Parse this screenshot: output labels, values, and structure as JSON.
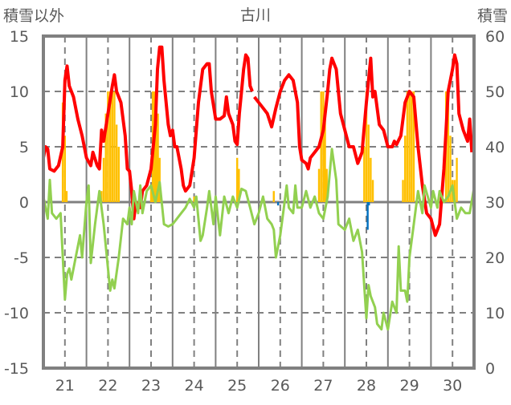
{
  "chart_data": {
    "type": "line",
    "title": "古川",
    "ylabel": "積雪以外",
    "y2label": "積雪",
    "xlim": [
      20.5,
      30.5
    ],
    "ylim": [
      -15,
      15
    ],
    "y2lim": [
      0,
      60
    ],
    "grid": true,
    "x_ticks": [
      "21",
      "22",
      "23",
      "24",
      "25",
      "26",
      "27",
      "28",
      "29",
      "30"
    ],
    "y_ticks": [
      "15",
      "10",
      "5",
      "0",
      "-5",
      "-10",
      "-15"
    ],
    "y2_ticks": [
      "60",
      "50",
      "40",
      "30",
      "20",
      "10",
      "0"
    ],
    "colors": {
      "red": "#ff0000",
      "green": "#92d050",
      "orange": "#ffc000",
      "blue": "#0070c0",
      "purple": "#7030a0",
      "frame": "#808080"
    },
    "series": [
      {
        "name": "red_line",
        "color": "#ff0000",
        "points": [
          [
            20.5,
            4.0
          ],
          [
            20.55,
            5
          ],
          [
            20.6,
            4.8
          ],
          [
            20.65,
            3
          ],
          [
            20.75,
            2.8
          ],
          [
            20.85,
            3.3
          ],
          [
            20.95,
            5
          ],
          [
            21.0,
            11
          ],
          [
            21.05,
            12.3
          ],
          [
            21.1,
            10.5
          ],
          [
            21.2,
            9.5
          ],
          [
            21.3,
            7.5
          ],
          [
            21.4,
            6
          ],
          [
            21.45,
            5
          ],
          [
            21.5,
            4
          ],
          [
            21.6,
            3.3
          ],
          [
            21.65,
            4.5
          ],
          [
            21.75,
            3.3
          ],
          [
            21.8,
            3
          ],
          [
            21.85,
            6.5
          ],
          [
            21.9,
            5.5
          ],
          [
            22.0,
            8
          ],
          [
            22.1,
            10.5
          ],
          [
            22.15,
            11.5
          ],
          [
            22.2,
            10
          ],
          [
            22.3,
            9
          ],
          [
            22.4,
            6
          ],
          [
            22.45,
            3
          ],
          [
            22.5,
            2.8
          ],
          [
            22.55,
            1
          ],
          [
            22.6,
            -1.5
          ],
          [
            22.65,
            0
          ],
          [
            22.75,
            -0.5
          ],
          [
            22.8,
            1
          ],
          [
            22.9,
            1.5
          ],
          [
            23.0,
            3
          ],
          [
            23.1,
            7
          ],
          [
            23.15,
            12
          ],
          [
            23.2,
            14
          ],
          [
            23.25,
            14
          ],
          [
            23.3,
            11
          ],
          [
            23.4,
            7
          ],
          [
            23.45,
            6
          ],
          [
            23.5,
            6.5
          ],
          [
            23.55,
            5
          ],
          [
            23.6,
            5
          ],
          [
            23.7,
            3
          ],
          [
            23.75,
            1.5
          ],
          [
            23.8,
            1
          ],
          [
            23.9,
            1.5
          ],
          [
            24.0,
            4
          ],
          [
            24.1,
            9
          ],
          [
            24.2,
            12
          ],
          [
            24.3,
            12.5
          ],
          [
            24.35,
            12.5
          ],
          [
            24.4,
            10
          ],
          [
            24.5,
            7.5
          ],
          [
            24.6,
            7.5
          ],
          [
            24.7,
            7.8
          ],
          [
            24.75,
            9.5
          ],
          [
            24.8,
            8
          ],
          [
            24.9,
            7
          ],
          [
            24.95,
            5.5
          ],
          [
            25.0,
            5.2
          ],
          [
            25.05,
            8
          ],
          [
            25.1,
            10
          ],
          [
            25.15,
            12
          ],
          [
            25.2,
            13.3
          ],
          [
            25.25,
            13
          ],
          [
            25.3,
            10.5
          ],
          [
            25.35,
            10
          ],
          null,
          [
            25.4,
            9.5
          ],
          [
            25.5,
            9
          ],
          [
            25.6,
            8.5
          ],
          [
            25.7,
            8
          ],
          [
            25.8,
            6.8
          ],
          [
            25.9,
            8.5
          ],
          [
            26.0,
            10
          ],
          [
            26.1,
            11
          ],
          [
            26.2,
            11.5
          ],
          [
            26.3,
            11
          ],
          [
            26.4,
            9
          ],
          [
            26.45,
            5
          ],
          [
            26.5,
            3.8
          ],
          [
            26.6,
            3.5
          ],
          [
            26.65,
            3
          ],
          [
            26.7,
            4
          ],
          [
            26.8,
            4.5
          ],
          [
            26.9,
            5
          ],
          [
            27.0,
            6.5
          ],
          [
            27.1,
            10
          ],
          [
            27.15,
            12
          ],
          [
            27.2,
            13
          ],
          [
            27.3,
            12
          ],
          [
            27.4,
            8
          ],
          [
            27.5,
            6.5
          ],
          [
            27.6,
            5
          ],
          [
            27.7,
            5
          ],
          [
            27.8,
            3.5
          ],
          [
            27.9,
            4.5
          ],
          [
            28.0,
            9
          ],
          [
            28.05,
            11
          ],
          [
            28.1,
            13
          ],
          [
            28.15,
            9.5
          ],
          [
            28.2,
            10
          ],
          [
            28.3,
            7
          ],
          [
            28.4,
            6.5
          ],
          [
            28.5,
            5
          ],
          [
            28.6,
            5
          ],
          [
            28.65,
            5.5
          ],
          [
            28.7,
            5.2
          ],
          [
            28.8,
            6
          ],
          [
            28.9,
            9
          ],
          [
            29.0,
            10
          ],
          [
            29.1,
            9.5
          ],
          [
            29.2,
            5
          ],
          [
            29.3,
            1.5
          ],
          [
            29.4,
            -1
          ],
          [
            29.5,
            -1.5
          ],
          [
            29.6,
            -3
          ],
          [
            29.7,
            -2
          ],
          [
            29.8,
            3
          ],
          [
            29.9,
            10
          ],
          [
            30.0,
            12
          ],
          [
            30.05,
            13.3
          ],
          [
            30.1,
            12.5
          ],
          [
            30.15,
            8
          ],
          [
            30.25,
            6.5
          ],
          [
            30.35,
            5.5
          ],
          [
            30.4,
            7.5
          ],
          [
            30.45,
            4.5
          ]
        ]
      },
      {
        "name": "green_line",
        "color": "#92d050",
        "points": [
          [
            20.5,
            0.5
          ],
          [
            20.6,
            -1.5
          ],
          [
            20.65,
            2
          ],
          [
            20.7,
            -1
          ],
          [
            20.8,
            -1.5
          ],
          [
            20.9,
            -1
          ],
          [
            21.0,
            -8.8
          ],
          [
            21.05,
            -6.5
          ],
          [
            21.1,
            -6
          ],
          [
            21.15,
            -7
          ],
          [
            21.3,
            -4
          ],
          [
            21.35,
            -3
          ],
          [
            21.4,
            -5
          ],
          [
            21.5,
            0
          ],
          [
            21.55,
            1.5
          ],
          [
            21.6,
            -5.5
          ],
          [
            21.7,
            -2
          ],
          [
            21.8,
            1
          ],
          [
            21.9,
            -2
          ],
          [
            22.0,
            -6
          ],
          [
            22.05,
            -8
          ],
          [
            22.1,
            -7
          ],
          [
            22.15,
            -7.8
          ],
          [
            22.25,
            -5
          ],
          [
            22.35,
            -1.5
          ],
          [
            22.45,
            -2
          ],
          [
            22.5,
            -0.5
          ],
          [
            22.55,
            -2
          ],
          [
            22.6,
            1
          ],
          [
            22.7,
            -1
          ],
          [
            22.75,
            1.5
          ],
          [
            22.8,
            -1
          ],
          [
            22.9,
            1
          ],
          [
            23.0,
            1.5
          ],
          [
            23.1,
            0
          ],
          [
            23.2,
            1.8
          ],
          [
            23.3,
            -2
          ],
          [
            23.4,
            -2.2
          ],
          [
            23.5,
            -2
          ],
          [
            23.6,
            -1.5
          ],
          [
            23.7,
            -1
          ],
          [
            23.8,
            -0.5
          ],
          [
            23.9,
            0.3
          ],
          [
            24.0,
            -0.5
          ],
          [
            24.05,
            0.5
          ],
          [
            24.15,
            -3.5
          ],
          [
            24.2,
            -3
          ],
          [
            24.3,
            -0.5
          ],
          [
            24.35,
            1
          ],
          [
            24.45,
            -2
          ],
          [
            24.5,
            0.5
          ],
          [
            24.6,
            -3
          ],
          [
            24.7,
            0.5
          ],
          [
            24.8,
            -1
          ],
          [
            24.9,
            0.5
          ],
          [
            25.0,
            -0.5
          ],
          [
            25.1,
            1.2
          ],
          [
            25.2,
            1
          ],
          [
            25.3,
            -0.5
          ],
          [
            25.4,
            -2
          ],
          [
            25.5,
            -1
          ],
          [
            25.6,
            0.5
          ],
          [
            25.7,
            -1.5
          ],
          [
            25.8,
            -2
          ],
          [
            25.85,
            -2.5
          ],
          [
            25.9,
            -5
          ],
          [
            26.0,
            -3
          ],
          [
            26.1,
            0
          ],
          [
            26.15,
            1.5
          ],
          [
            26.2,
            -0.5
          ],
          [
            26.3,
            -1
          ],
          [
            26.35,
            1.5
          ],
          [
            26.4,
            -0.5
          ],
          [
            26.5,
            -0.5
          ],
          [
            26.6,
            1
          ],
          [
            26.7,
            -0.5
          ],
          [
            26.8,
            0.5
          ],
          [
            26.9,
            -1
          ],
          [
            27.0,
            -1.5
          ],
          [
            27.1,
            0.5
          ],
          [
            27.2,
            4.8
          ],
          [
            27.3,
            2
          ],
          [
            27.35,
            -2
          ],
          [
            27.5,
            -2.5
          ],
          [
            27.6,
            -1.5
          ],
          [
            27.7,
            -3.5
          ],
          [
            27.8,
            -2.5
          ],
          [
            27.9,
            -4.5
          ],
          [
            28.0,
            -10.5
          ],
          [
            28.05,
            -7.5
          ],
          [
            28.1,
            -8.5
          ],
          [
            28.2,
            -9.5
          ],
          [
            28.25,
            -11
          ],
          [
            28.35,
            -11.5
          ],
          [
            28.4,
            -10
          ],
          [
            28.5,
            -11.5
          ],
          [
            28.6,
            -9
          ],
          [
            28.7,
            -10
          ],
          [
            28.75,
            -4
          ],
          [
            28.8,
            -8
          ],
          [
            28.9,
            -8
          ],
          [
            28.95,
            -9
          ],
          [
            29.0,
            -5
          ],
          [
            29.1,
            -2
          ],
          [
            29.2,
            1
          ],
          [
            29.3,
            -1
          ],
          [
            29.35,
            1.5
          ],
          [
            29.5,
            -0.5
          ],
          [
            29.55,
            1
          ],
          [
            29.65,
            -0.5
          ],
          [
            29.7,
            1
          ],
          [
            29.8,
            0
          ],
          [
            29.9,
            0.5
          ],
          [
            30.0,
            1.5
          ],
          [
            30.1,
            -1.5
          ],
          [
            30.2,
            -0.5
          ],
          [
            30.3,
            -1
          ],
          [
            30.4,
            -1
          ],
          [
            30.5,
            1.3
          ]
        ]
      },
      {
        "name": "snow_depth",
        "axis": "right",
        "color": "#7030a0",
        "points": [
          [
            20.5,
            0
          ],
          [
            30.5,
            0
          ]
        ]
      }
    ],
    "bars": [
      {
        "name": "orange_bars",
        "color": "#ffc000",
        "points": [
          [
            20.95,
            9
          ],
          [
            21.0,
            6
          ],
          [
            21.04,
            1
          ],
          [
            21.85,
            1
          ],
          [
            21.9,
            4
          ],
          [
            21.95,
            8
          ],
          [
            22.0,
            10
          ],
          [
            22.05,
            10
          ],
          [
            22.1,
            10
          ],
          [
            22.15,
            10
          ],
          [
            22.2,
            7
          ],
          [
            22.25,
            5
          ],
          [
            23.0,
            1.5
          ],
          [
            23.04,
            10
          ],
          [
            23.08,
            10
          ],
          [
            23.12,
            10
          ],
          [
            23.16,
            8
          ],
          [
            23.2,
            4
          ],
          [
            24.0,
            0.5
          ],
          [
            25.0,
            4
          ],
          [
            25.04,
            3
          ],
          [
            25.85,
            1
          ],
          [
            26.9,
            3
          ],
          [
            26.95,
            10
          ],
          [
            27.0,
            10
          ],
          [
            27.04,
            8
          ],
          [
            27.08,
            3
          ],
          [
            27.95,
            5
          ],
          [
            28.0,
            10
          ],
          [
            28.05,
            7
          ],
          [
            28.1,
            4
          ],
          [
            28.15,
            2
          ],
          [
            28.85,
            2
          ],
          [
            28.9,
            6
          ],
          [
            28.95,
            10
          ],
          [
            29.0,
            10
          ],
          [
            29.05,
            10
          ],
          [
            29.1,
            10
          ],
          [
            29.85,
            10
          ],
          [
            29.9,
            10
          ],
          [
            29.95,
            6
          ],
          [
            30.0,
            2
          ],
          [
            30.05,
            2
          ],
          [
            30.1,
            4
          ]
        ]
      },
      {
        "name": "blue_bars",
        "color": "#0070c0",
        "points": [
          [
            25.95,
            -0.3
          ],
          [
            28.03,
            -2.5
          ],
          [
            28.06,
            -0.3
          ]
        ]
      }
    ]
  }
}
